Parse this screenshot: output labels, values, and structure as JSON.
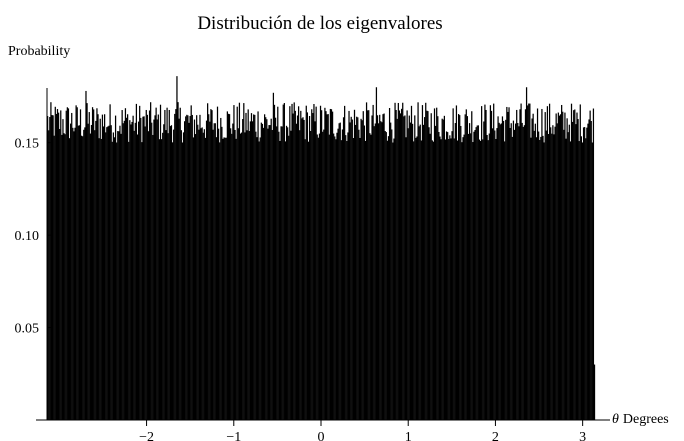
{
  "chart_data": {
    "type": "bar",
    "title": "Distribución de los eigenvalores",
    "ylabel": "Probability",
    "xlabel_symbol": "θ",
    "xlabel_unit": "Degrees",
    "xlim": [
      -3.14159,
      3.14159
    ],
    "ylim": [
      0,
      0.185
    ],
    "x_ticks": [
      {
        "value": -2,
        "label": "−2"
      },
      {
        "value": -1,
        "label": "−1"
      },
      {
        "value": 0,
        "label": "0"
      },
      {
        "value": 1,
        "label": "1"
      },
      {
        "value": 2,
        "label": "2"
      },
      {
        "value": 3,
        "label": "3"
      }
    ],
    "y_ticks": [
      {
        "value": 0.05,
        "label": "0.05"
      },
      {
        "value": 0.1,
        "label": "0.10"
      },
      {
        "value": 0.15,
        "label": "0.15"
      }
    ],
    "bins": {
      "count": 500,
      "x_start": -3.14159,
      "x_end": 3.14159,
      "typical_min": 0.15,
      "typical_max": 0.172,
      "peak_values": [
        {
          "x": -1.65,
          "value": 0.186
        },
        {
          "x": 0.64,
          "value": 0.18
        },
        {
          "x": 2.36,
          "value": 0.18
        },
        {
          "x": -2.7,
          "value": 0.178
        },
        {
          "x": -0.55,
          "value": 0.177
        }
      ],
      "last_bin_value": 0.03
    },
    "bar_color": "#000000",
    "grid": false
  }
}
